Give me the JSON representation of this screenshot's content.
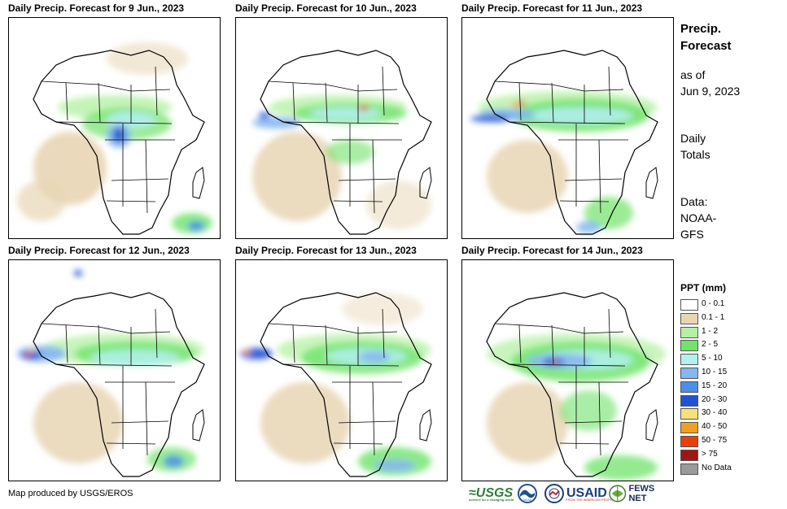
{
  "panels": [
    {
      "title": "Daily Precip. Forecast for 9 Jun., 2023"
    },
    {
      "title": "Daily Precip. Forecast for 10 Jun., 2023"
    },
    {
      "title": "Daily Precip. Forecast for 11 Jun., 2023"
    },
    {
      "title": "Daily Precip. Forecast for 12 Jun., 2023"
    },
    {
      "title": "Daily Precip. Forecast for 13 Jun., 2023"
    },
    {
      "title": "Daily Precip. Forecast for 14 Jun., 2023"
    }
  ],
  "sidebar": {
    "title_line1": "Precip.",
    "title_line2": "Forecast",
    "asof_line1": "as of",
    "asof_line2": "Jun 9, 2023",
    "totals_line1": "Daily",
    "totals_line2": "Totals",
    "data_line1": "Data:",
    "data_line2": "NOAA-",
    "data_line3": "GFS"
  },
  "legend": {
    "title": "PPT (mm)",
    "items": [
      {
        "label": "0 - 0.1",
        "color": "#ffffff"
      },
      {
        "label": "0.1 - 1",
        "color": "#e8d5b4"
      },
      {
        "label": "1 - 2",
        "color": "#b6f0a6"
      },
      {
        "label": "2 - 5",
        "color": "#6fe36a"
      },
      {
        "label": "5 - 10",
        "color": "#b3eef0"
      },
      {
        "label": "10 - 15",
        "color": "#86b7ef"
      },
      {
        "label": "15 - 20",
        "color": "#4e8fe6"
      },
      {
        "label": "20 - 30",
        "color": "#1f52d4"
      },
      {
        "label": "30 - 40",
        "color": "#f8e17a"
      },
      {
        "label": "40 - 50",
        "color": "#f0a020"
      },
      {
        "label": "50 - 75",
        "color": "#e8400a"
      },
      {
        "label": "> 75",
        "color": "#a01414"
      },
      {
        "label": "No Data",
        "color": "#9a9a9a"
      }
    ]
  },
  "footer": {
    "credit": "Map produced by USGS/EROS"
  },
  "logos": {
    "usgs": "≈USGS",
    "usgs_tagline": "science for a changing world",
    "noaa": "NOAA",
    "usaid": "USAID",
    "usaid_tagline": "FROM THE AMERICAN PEOPLE",
    "fews": "FEWS NET"
  }
}
